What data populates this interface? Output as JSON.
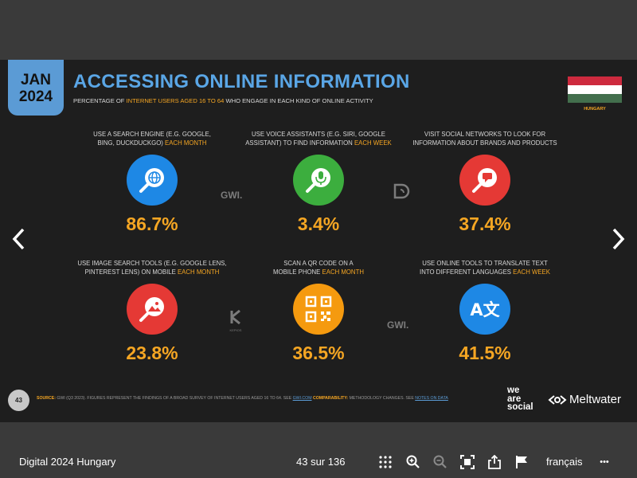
{
  "slide": {
    "date_month": "JAN",
    "date_year": "2024",
    "title": "ACCESSING ONLINE INFORMATION",
    "subtitle_pre": "PERCENTAGE OF ",
    "subtitle_hl": "INTERNET USERS AGED 16 TO 64",
    "subtitle_post": " WHO ENGAGE IN EACH KIND OF ONLINE ACTIVITY",
    "flag_label": "HUNGARY",
    "flag_colors": [
      "#cd2a3e",
      "#ffffff",
      "#436f4d"
    ],
    "stats": [
      {
        "line1": "USE A SEARCH ENGINE (E.G. GOOGLE,",
        "line2": "BING, DUCKDUCKGO) ",
        "hl": "EACH MONTH",
        "value": "86.7%",
        "icon": "search-globe-icon",
        "color": "#1e88e5"
      },
      {
        "line1": "USE VOICE ASSISTANTS (E.G. SIRI, GOOGLE",
        "line2": "ASSISTANT) TO FIND INFORMATION ",
        "hl": "EACH WEEK",
        "value": "3.4%",
        "icon": "microphone-icon",
        "color": "#3cae3e"
      },
      {
        "line1": "VISIT SOCIAL NETWORKS TO LOOK FOR",
        "line2": "INFORMATION ABOUT BRANDS AND PRODUCTS",
        "hl": "",
        "value": "37.4%",
        "icon": "chat-search-icon",
        "color": "#e53935"
      },
      {
        "line1": "USE IMAGE SEARCH TOOLS (E.G. GOOGLE LENS,",
        "line2": "PINTEREST LENS) ON MOBILE ",
        "hl": "EACH MONTH",
        "value": "23.8%",
        "icon": "image-search-icon",
        "color": "#e53935"
      },
      {
        "line1": "SCAN A QR CODE ON A",
        "line2": "MOBILE PHONE ",
        "hl": "EACH MONTH",
        "value": "36.5%",
        "icon": "qr-code-icon",
        "color": "#f59a0f"
      },
      {
        "line1": "USE ONLINE TOOLS TO TRANSLATE TEXT",
        "line2": "INTO DIFFERENT LANGUAGES ",
        "hl": "EACH WEEK",
        "value": "41.5%",
        "icon": "translate-icon",
        "color": "#1e88e5"
      }
    ],
    "translate_glyph": "A文",
    "watermark1": "GWI.",
    "watermark2": "GWI.",
    "watermark_kepios": "KEPIOS",
    "page_number": "43",
    "source_label": "SOURCE:",
    "source_text": " GWI (Q3 2023). FIGURES REPRESENT THE FINDINGS OF A BROAD SURVEY OF INTERNET USERS AGED 16 TO 64. SEE ",
    "source_link": "GWI.COM",
    "comparability_label": " COMPARABILITY:",
    "comparability_text": " METHODOLOGY CHANGES. SEE ",
    "notes_link": "NOTES ON DATA",
    "brand_was": [
      "we",
      "are",
      "social"
    ],
    "brand_meltwater": "Meltwater"
  },
  "viewer": {
    "doc_title": "Digital 2024 Hungary",
    "page_count": "43 sur 136",
    "language": "français",
    "more_glyph": "•••"
  }
}
